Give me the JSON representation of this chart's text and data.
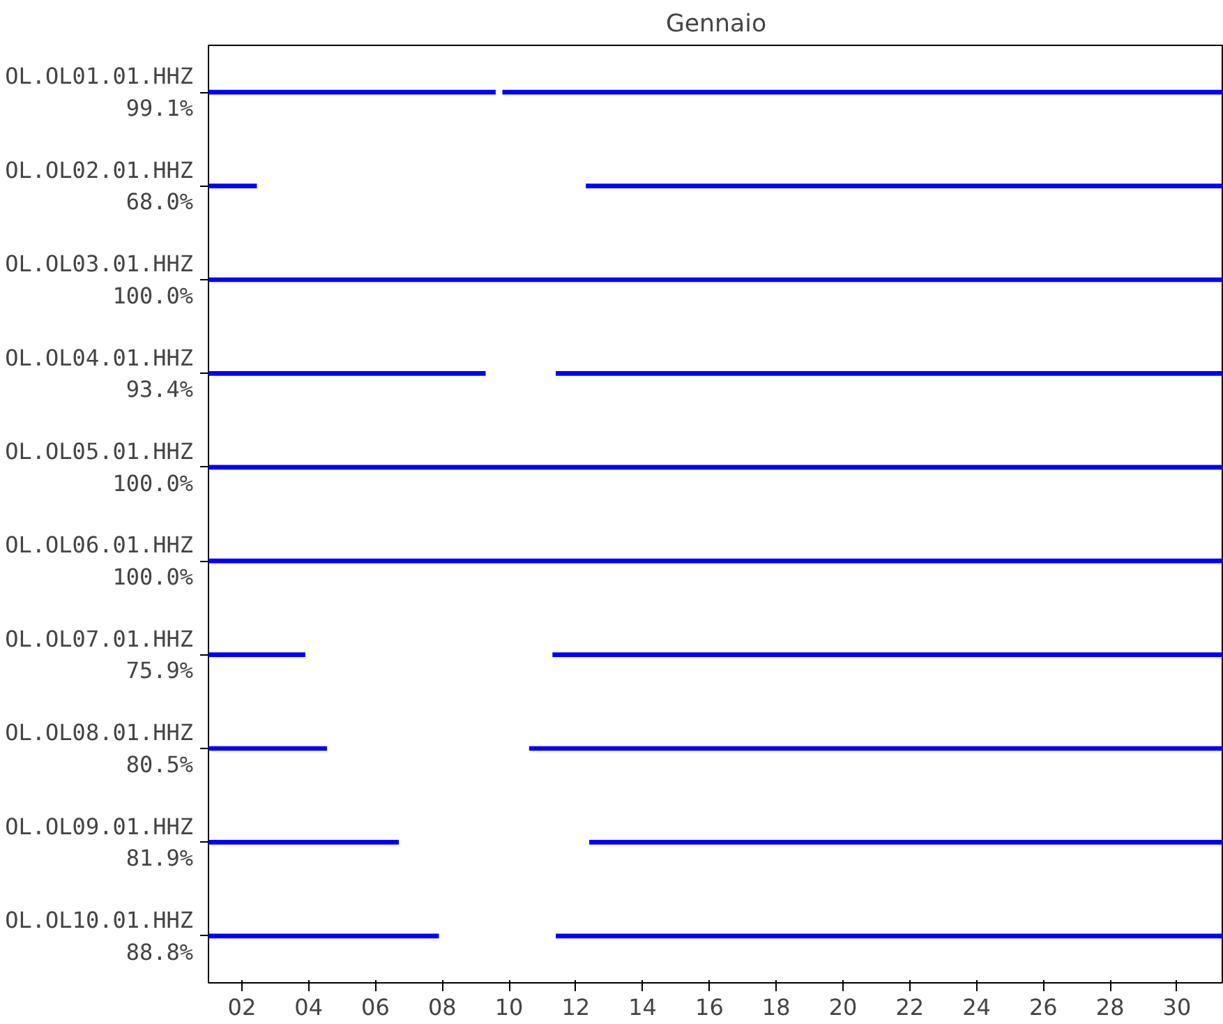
{
  "chart_data": {
    "type": "bar",
    "orientation": "horizontal",
    "title": "Gennaio",
    "categories": [
      "OL.OL01.01.HHZ\n99.1%",
      "OL.OL02.01.HHZ\n68.0%",
      "OL.OL03.01.HHZ\n100.0%",
      "OL.OL04.01.HHZ\n93.4%",
      "OL.OL05.01.HHZ\n100.0%",
      "OL.OL06.01.HHZ\n100.0%",
      "OL.OL07.01.HHZ\n75.9%",
      "OL.OL08.01.HHZ\n80.5%",
      "OL.OL09.01.HHZ\n81.9%",
      "OL.OL10.01.HHZ\n88.8%"
    ],
    "series": [
      {
        "color": "#0000ff",
        "base": [
          1,
          1,
          1,
          1,
          1,
          1,
          1,
          1,
          1,
          1
        ],
        "values": [
          8.6,
          1.45,
          30.4,
          8.3,
          30.4,
          30.4,
          2.9,
          3.55,
          5.7,
          6.9
        ]
      },
      {
        "color": "#0000ff",
        "base": [
          9.8,
          12.3,
          null,
          11.4,
          null,
          null,
          11.3,
          10.6,
          12.4,
          11.4
        ],
        "values": [
          21.6,
          19.1,
          null,
          20.0,
          null,
          null,
          20.1,
          20.8,
          19.0,
          20.0
        ]
      }
    ],
    "xlim": [
      1,
      31.4
    ],
    "xticks": [
      {
        "value": 2,
        "label": "02"
      },
      {
        "value": 4,
        "label": "04"
      },
      {
        "value": 6,
        "label": "06"
      },
      {
        "value": 8,
        "label": "08"
      },
      10,
      12,
      14,
      16,
      18,
      20,
      22,
      24,
      26,
      28,
      30
    ],
    "grid": false
  }
}
